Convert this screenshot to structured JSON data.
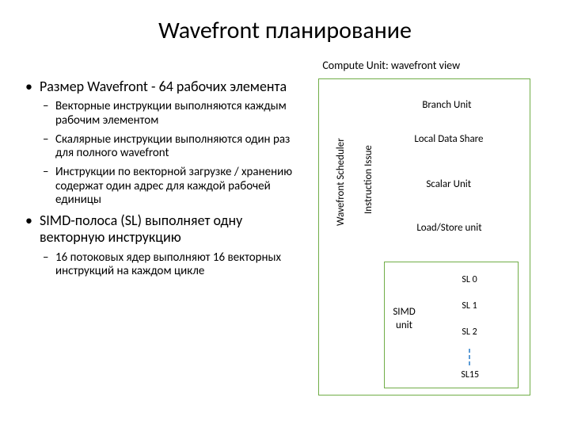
{
  "title": "Wavefront планирование",
  "bullets": {
    "b1": "Размер Wavefront - 64 рабочих элемента",
    "b1_1": "Векторные инструкции выполняются каждым рабочим элементом",
    "b1_2": "Скалярные инструкции выполняются один раз для полного wavefront",
    "b1_3": "Инструкции по векторной загрузке / хранению содержат один адрес для каждой рабочей единицы",
    "b2": "SIMD-полоса (SL) выполняет одну векторную инструкцию",
    "b2_1": "16 потоковых ядер выполняют 16 векторных инструкций на каждом цикле"
  },
  "diagram": {
    "header": "Compute Unit: wavefront view",
    "wavefront_scheduler": "Wavefront Scheduler",
    "instruction_issue": "Instruction Issue",
    "branch_unit": "Branch Unit",
    "local_data_share": "Local Data Share",
    "scalar_unit": "Scalar Unit",
    "load_store": "Load/Store unit",
    "simd_unit": "SIMD unit",
    "sl0": "SL 0",
    "sl1": "SL 1",
    "sl2": "SL 2",
    "sl15": "SL15",
    "border_color": "#70ad47",
    "dot_color": "#5b9bd5"
  }
}
